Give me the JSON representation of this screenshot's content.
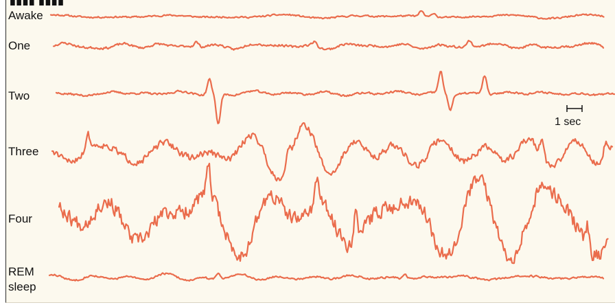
{
  "stages": [
    {
      "label": "Awake"
    },
    {
      "label": "One"
    },
    {
      "label": "Two"
    },
    {
      "label": "Three"
    },
    {
      "label": "Four"
    },
    {
      "label": "REM\nsleep"
    }
  ],
  "scale_bar": {
    "label": "1 sec"
  },
  "colors": {
    "trace": "#e8603e",
    "panel": "#fcf9ee",
    "text": "#111111"
  }
}
